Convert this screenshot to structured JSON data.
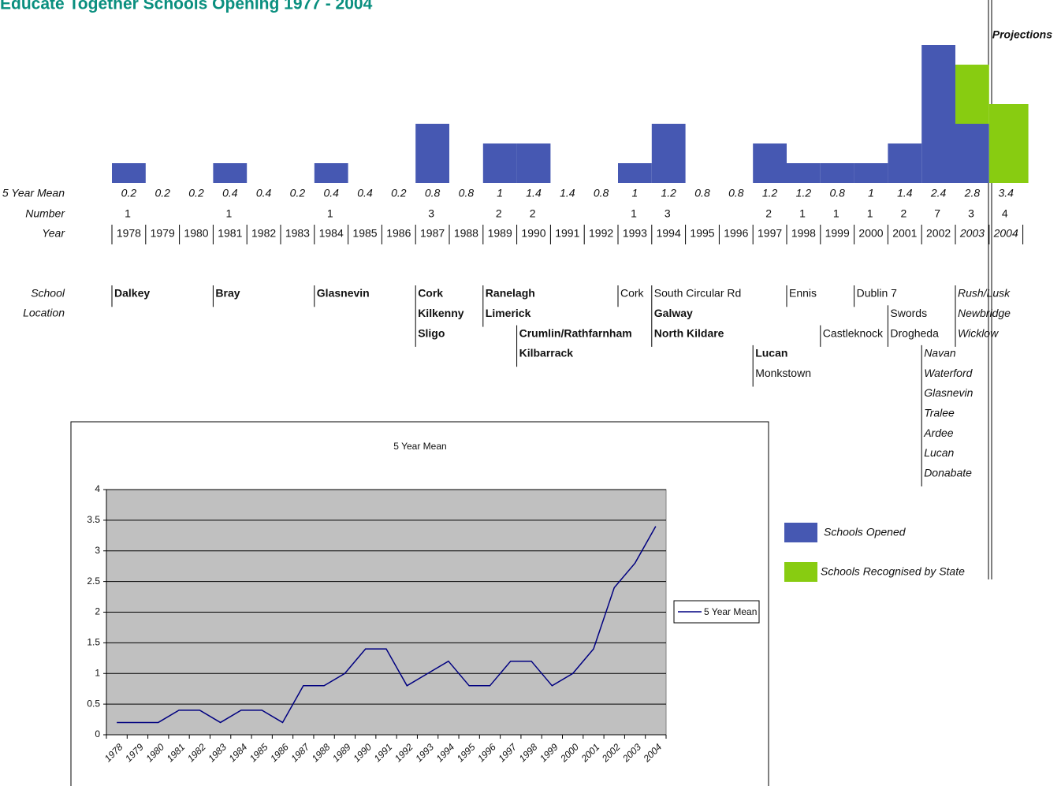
{
  "chart_data": [
    {
      "type": "bar",
      "title": "Educate Together Schools Opening 1977 - 2004",
      "projections": "Projections",
      "categories": [
        "1978",
        "1979",
        "1980",
        "1981",
        "1982",
        "1983",
        "1984",
        "1985",
        "1986",
        "1987",
        "1988",
        "1989",
        "1990",
        "1991",
        "1992",
        "1993",
        "1994",
        "1995",
        "1996",
        "1997",
        "1998",
        "1999",
        "2000",
        "2001",
        "2002",
        "2003",
        "2004"
      ],
      "series": [
        {
          "name": "Schools Opened",
          "color": "#4658b2",
          "values": [
            1,
            null,
            null,
            1,
            null,
            null,
            1,
            null,
            null,
            3,
            null,
            2,
            2,
            null,
            null,
            1,
            3,
            null,
            null,
            2,
            1,
            1,
            1,
            2,
            7,
            3,
            null
          ]
        },
        {
          "name": "Schools Recognised by State",
          "color": "#88cc11",
          "values": [
            null,
            null,
            null,
            null,
            null,
            null,
            null,
            null,
            null,
            null,
            null,
            null,
            null,
            null,
            null,
            null,
            null,
            null,
            null,
            null,
            null,
            null,
            null,
            null,
            null,
            3,
            4
          ]
        }
      ],
      "mean_label": "5 Year Mean",
      "means": [
        0.2,
        0.2,
        0.2,
        0.4,
        0.4,
        0.2,
        0.4,
        0.4,
        0.2,
        0.8,
        0.8,
        1,
        1.4,
        1.4,
        0.8,
        1,
        1.2,
        0.8,
        0.8,
        1.2,
        1.2,
        0.8,
        1,
        1.4,
        2.4,
        2.8,
        3.4
      ],
      "number_label": "Number",
      "numbers": [
        1,
        null,
        null,
        1,
        null,
        null,
        1,
        null,
        null,
        3,
        null,
        2,
        2,
        null,
        null,
        1,
        3,
        null,
        null,
        2,
        1,
        1,
        1,
        2,
        7,
        3,
        4
      ],
      "year_label": "Year",
      "school_label": "School",
      "location_label": "Location",
      "schools": [
        [
          "Dalkey"
        ],
        [],
        [],
        [
          "Bray"
        ],
        [],
        [],
        [
          "Glasnevin"
        ],
        [],
        [],
        [
          "Cork",
          "Kilkenny",
          "Sligo"
        ],
        [],
        [
          "Ranelagh",
          "Limerick"
        ],
        [
          "Crumlin/Rathfarnham",
          "Kilbarrack"
        ],
        [],
        [],
        [
          "Cork"
        ],
        [
          "South Circular Rd",
          "Galway",
          "North  Kildare"
        ],
        [],
        [],
        [
          "Lucan",
          "Monkstown"
        ],
        [
          "Ennis"
        ],
        [
          "Castleknock"
        ],
        [
          "Dublin 7"
        ],
        [
          "Swords",
          "Drogheda"
        ],
        [
          "Navan",
          "Waterford",
          "Glasnevin",
          "Tralee",
          "Ardee",
          "Lucan",
          "Donabate"
        ],
        [
          "Rush/Lusk",
          "Newbridge",
          "Wicklow"
        ],
        []
      ]
    },
    {
      "type": "line",
      "title": "5 Year Mean",
      "categories": [
        "1978",
        "1979",
        "1980",
        "1981",
        "1982",
        "1983",
        "1984",
        "1985",
        "1986",
        "1987",
        "1988",
        "1989",
        "1990",
        "1991",
        "1992",
        "1993",
        "1994",
        "1995",
        "1996",
        "1997",
        "1998",
        "1999",
        "2000",
        "2001",
        "2002",
        "2003",
        "2004"
      ],
      "series": [
        {
          "name": "5 Year Mean",
          "color": "#000080",
          "values": [
            0.2,
            0.2,
            0.2,
            0.4,
            0.4,
            0.2,
            0.4,
            0.4,
            0.2,
            0.8,
            0.8,
            1,
            1.4,
            1.4,
            0.8,
            1,
            1.2,
            0.8,
            0.8,
            1.2,
            1.2,
            0.8,
            1,
            1.4,
            2.4,
            2.8,
            3.4
          ]
        }
      ],
      "ylim": [
        0,
        4
      ],
      "yticks": [
        0,
        0.5,
        1,
        1.5,
        2,
        2.5,
        3,
        3.5,
        4
      ],
      "grid": true
    }
  ]
}
